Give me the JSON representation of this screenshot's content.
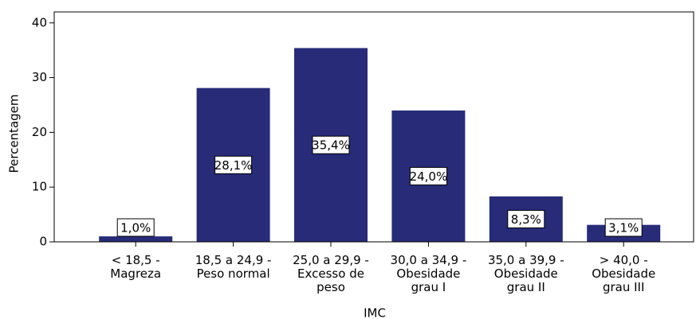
{
  "chart_data": {
    "type": "bar",
    "xlabel": "IMC",
    "ylabel": "Percentagem",
    "categories": [
      [
        "< 18,5 -",
        "Magreza"
      ],
      [
        "18,5 a 24,9 -",
        "Peso normal"
      ],
      [
        "25,0 a 29,9 -",
        "Excesso de",
        "peso"
      ],
      [
        "30,0 a 34,9 -",
        "Obesidade",
        "grau I"
      ],
      [
        "35,0 a 39,9 -",
        "Obesidade",
        "grau II"
      ],
      [
        "> 40,0 -",
        "Obesidade",
        "grau III"
      ]
    ],
    "values": [
      1.0,
      28.1,
      35.4,
      24.0,
      8.3,
      3.1
    ],
    "value_labels": [
      "1,0%",
      "28,1%",
      "35,4%",
      "24,0%",
      "8,3%",
      "3,1%"
    ],
    "color": "#272b78",
    "ylim": [
      0,
      42
    ],
    "yticks": [
      0,
      10,
      20,
      30,
      40
    ]
  }
}
